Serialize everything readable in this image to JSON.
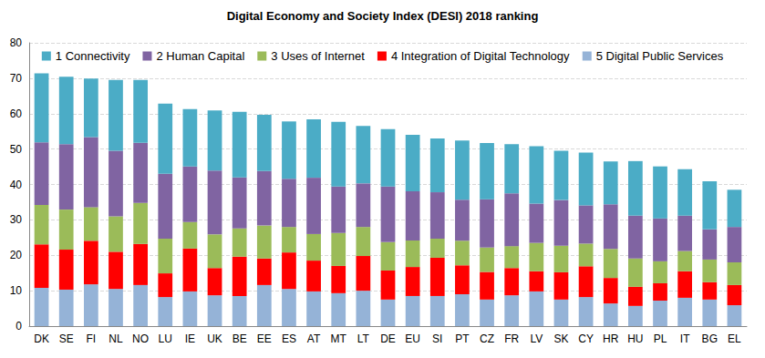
{
  "chart_data": {
    "type": "bar",
    "title": "Digital Economy and Society Index (DESI) 2018 ranking",
    "categories": [
      "DK",
      "SE",
      "FI",
      "NL",
      "NO",
      "LU",
      "IE",
      "UK",
      "BE",
      "EE",
      "ES",
      "AT",
      "MT",
      "LT",
      "DE",
      "EU",
      "SI",
      "PT",
      "CZ",
      "FR",
      "LV",
      "SK",
      "CY",
      "HR",
      "HU",
      "PL",
      "IT",
      "BG",
      "EL"
    ],
    "series": [
      {
        "name": "1 Connectivity",
        "color": "#4bacc6",
        "values": [
          19.5,
          19.0,
          16.5,
          20.0,
          17.7,
          19.8,
          16.2,
          17.0,
          18.5,
          15.9,
          16.2,
          16.5,
          18.3,
          16.2,
          16.2,
          15.9,
          15.2,
          16.7,
          15.9,
          13.9,
          16.2,
          13.9,
          14.9,
          12.1,
          15.4,
          14.7,
          13.1,
          13.6,
          10.5
        ]
      },
      {
        "name": "2 Human Capital",
        "color": "#8064a2",
        "values": [
          17.7,
          18.5,
          19.8,
          18.5,
          17.0,
          18.3,
          15.7,
          18.0,
          14.4,
          15.4,
          13.6,
          15.9,
          13.1,
          12.3,
          15.7,
          13.9,
          13.1,
          11.6,
          13.6,
          14.9,
          11.1,
          12.9,
          10.8,
          12.6,
          12.1,
          12.1,
          10.0,
          8.5,
          10.0
        ]
      },
      {
        "name": "3 Uses of Internet",
        "color": "#9bbb59",
        "values": [
          11.1,
          11.3,
          9.5,
          10.0,
          11.6,
          9.8,
          7.5,
          9.5,
          8.0,
          9.3,
          7.2,
          7.5,
          9.3,
          8.2,
          8.0,
          7.5,
          5.4,
          6.9,
          6.9,
          6.2,
          8.0,
          7.5,
          6.4,
          8.2,
          8.0,
          6.2,
          5.7,
          6.4,
          6.4
        ]
      },
      {
        "name": "4 Integration of Digital Technology",
        "color": "#ff0000",
        "values": [
          12.3,
          11.3,
          12.3,
          10.5,
          11.6,
          6.7,
          12.1,
          7.7,
          11.1,
          7.5,
          10.3,
          8.7,
          7.7,
          9.8,
          8.2,
          8.2,
          10.8,
          8.2,
          7.8,
          7.7,
          5.7,
          7.7,
          8.7,
          7.2,
          5.4,
          4.9,
          7.5,
          4.9,
          5.7
        ]
      },
      {
        "name": "5 Digital Public Services",
        "color": "#95b3d7",
        "values": [
          10.8,
          10.3,
          11.8,
          10.5,
          11.6,
          8.2,
          9.8,
          8.7,
          8.5,
          11.6,
          10.5,
          9.8,
          9.3,
          10.0,
          7.5,
          8.5,
          8.5,
          9.0,
          7.5,
          8.7,
          9.8,
          7.5,
          8.2,
          6.4,
          5.7,
          7.2,
          8.0,
          7.5,
          5.9
        ]
      }
    ],
    "ylim": [
      0,
      80
    ],
    "yticks": [
      0,
      10,
      20,
      30,
      40,
      50,
      60,
      70,
      80
    ],
    "grid": true,
    "stacked": true,
    "legend": "top"
  }
}
